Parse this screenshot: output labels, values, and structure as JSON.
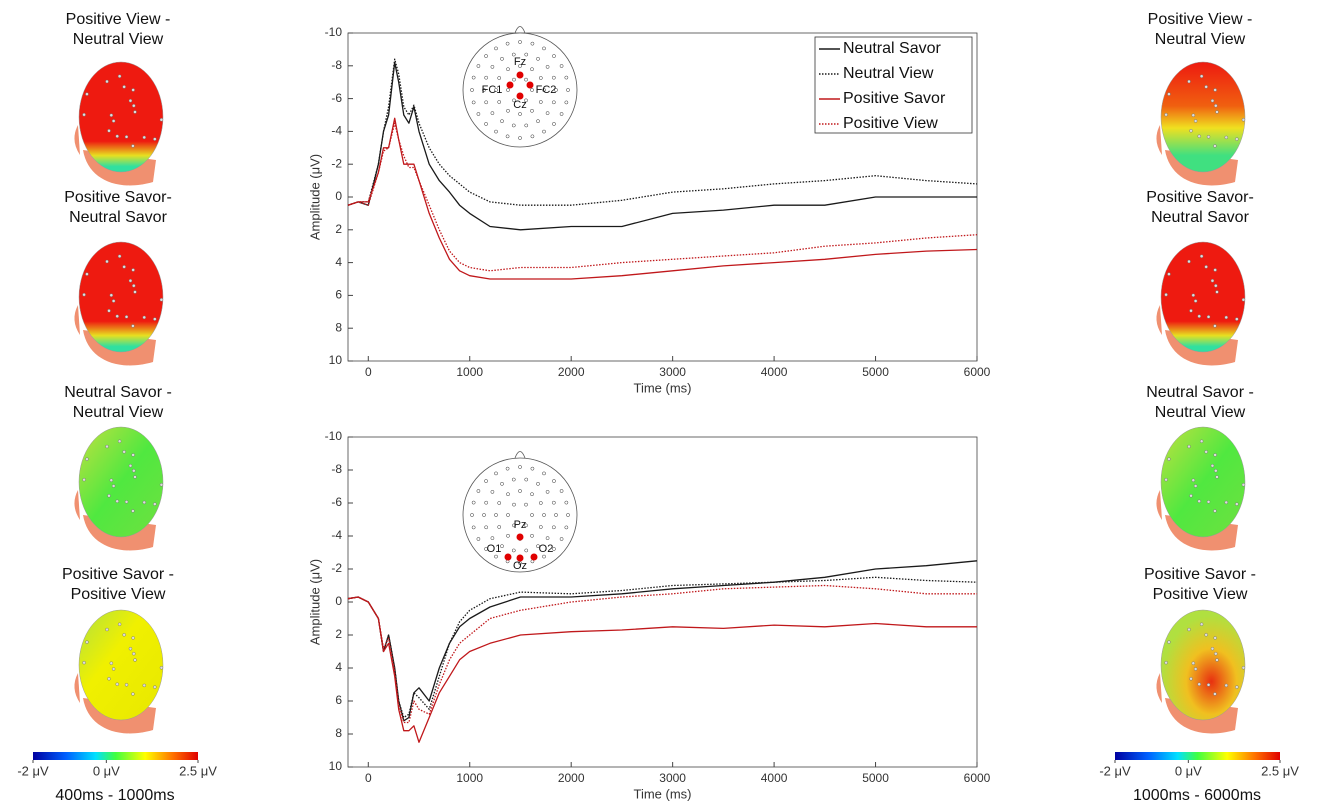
{
  "chart_data": [
    {
      "type": "line",
      "xlabel": "Time (ms)",
      "ylabel": "Amplitude (μV)",
      "xlim": [
        -200,
        6000
      ],
      "xticks": [
        0,
        1000,
        2000,
        3000,
        4000,
        5000,
        6000
      ],
      "ylim": [
        -10,
        10
      ],
      "yticks": [
        -10,
        -8,
        -6,
        -4,
        -2,
        0,
        2,
        4,
        6,
        8,
        10
      ],
      "y_reversed": true,
      "legend": "upper right",
      "electrodes": [
        "Fz",
        "FC1",
        "FC2",
        "Cz"
      ],
      "x": [
        -200,
        -100,
        0,
        100,
        150,
        200,
        260,
        300,
        350,
        400,
        450,
        500,
        600,
        700,
        800,
        900,
        1000,
        1200,
        1500,
        2000,
        2500,
        3000,
        3500,
        4000,
        4500,
        5000,
        5500,
        6000
      ],
      "series": [
        {
          "name": "Neutral Savor",
          "color": "#1a1a1a",
          "style": "solid",
          "values": [
            0.5,
            0.3,
            0.5,
            -2,
            -4,
            -5,
            -8.2,
            -7,
            -5,
            -4.5,
            -5.5,
            -4,
            -2,
            -1,
            -0.3,
            0.5,
            1,
            1.8,
            2,
            1.8,
            1.8,
            1,
            0.8,
            0.5,
            0.5,
            0,
            0,
            0
          ]
        },
        {
          "name": "Neutral View",
          "color": "#1a1a1a",
          "style": "dotted",
          "values": [
            0.5,
            0.3,
            0.3,
            -2,
            -4,
            -5.5,
            -8.4,
            -7.5,
            -5.5,
            -5,
            -5.6,
            -4.5,
            -3,
            -2,
            -1.3,
            -0.8,
            -0.3,
            0.3,
            0.5,
            0.5,
            0.2,
            -0.3,
            -0.5,
            -0.8,
            -1,
            -1.3,
            -1,
            -0.8
          ]
        },
        {
          "name": "Positive Savor",
          "color": "#c0181b",
          "style": "solid",
          "values": [
            0.5,
            0.3,
            0.3,
            -1.5,
            -3,
            -3,
            -4.8,
            -3.5,
            -2,
            -2,
            -2,
            -1,
            1,
            2.5,
            3.8,
            4.5,
            4.8,
            5,
            5,
            5,
            4.8,
            4.5,
            4.2,
            4,
            3.8,
            3.5,
            3.3,
            3.2
          ]
        },
        {
          "name": "Positive View",
          "color": "#c0181b",
          "style": "dotted",
          "values": [
            0.5,
            0.3,
            0.5,
            -1.5,
            -2.8,
            -3,
            -4.5,
            -3.5,
            -2.5,
            -1.8,
            -1.8,
            -1,
            0.5,
            2,
            3.3,
            4,
            4.3,
            4.5,
            4.3,
            4.3,
            4,
            3.8,
            3.6,
            3.4,
            3,
            2.8,
            2.5,
            2.3
          ]
        }
      ]
    },
    {
      "type": "line",
      "xlabel": "Time (ms)",
      "ylabel": "Amplitude (μV)",
      "xlim": [
        -200,
        6000
      ],
      "xticks": [
        0,
        1000,
        2000,
        3000,
        4000,
        5000,
        6000
      ],
      "ylim": [
        -10,
        10
      ],
      "yticks": [
        -10,
        -8,
        -6,
        -4,
        -2,
        0,
        2,
        4,
        6,
        8,
        10
      ],
      "y_reversed": true,
      "electrodes": [
        "Pz",
        "O1",
        "O2",
        "Oz"
      ],
      "x": [
        -200,
        -100,
        0,
        100,
        150,
        200,
        260,
        300,
        350,
        400,
        450,
        500,
        600,
        700,
        800,
        900,
        1000,
        1200,
        1500,
        2000,
        2500,
        3000,
        3500,
        4000,
        4500,
        5000,
        5500,
        6000
      ],
      "series": [
        {
          "color": "#1a1a1a",
          "style": "solid",
          "values": [
            -0.2,
            -0.3,
            0,
            1,
            3,
            2,
            4,
            6,
            7.2,
            7,
            5.5,
            5.2,
            6,
            4,
            2.5,
            1.5,
            1,
            0.3,
            -0.3,
            -0.3,
            -0.5,
            -0.8,
            -1,
            -1.2,
            -1.5,
            -2,
            -2.2,
            -2.5
          ]
        },
        {
          "color": "#1a1a1a",
          "style": "dotted",
          "values": [
            -0.2,
            -0.3,
            0,
            1,
            3,
            2,
            4,
            6,
            7,
            6.8,
            5.5,
            5.8,
            6.5,
            4.5,
            2.5,
            1.2,
            0.5,
            -0.2,
            -0.6,
            -0.5,
            -0.7,
            -1,
            -1.1,
            -1.2,
            -1.3,
            -1.5,
            -1.3,
            -1.2
          ]
        },
        {
          "color": "#c0181b",
          "style": "solid",
          "values": [
            -0.2,
            -0.3,
            0,
            1,
            3,
            2.5,
            4.5,
            6.5,
            7.8,
            7.8,
            7.5,
            8.5,
            7,
            5.5,
            4.5,
            3.5,
            3,
            2.5,
            2,
            1.8,
            1.7,
            1.5,
            1.6,
            1.4,
            1.5,
            1.3,
            1.5,
            1.5
          ]
        },
        {
          "color": "#c0181b",
          "style": "dotted",
          "values": [
            -0.2,
            -0.3,
            0,
            1,
            2.8,
            2.2,
            4.2,
            6.2,
            7.3,
            7.3,
            6,
            6.5,
            6.8,
            5,
            3.5,
            2.5,
            2,
            1,
            0.5,
            0,
            -0.3,
            -0.5,
            -0.8,
            -0.9,
            -1,
            -0.8,
            -0.5,
            -0.5
          ]
        }
      ]
    }
  ],
  "topomaps": {
    "left": {
      "caption": "400ms - 1000ms",
      "colorbar": {
        "lim": [
          -2,
          2.5
        ],
        "ticks": [
          {
            "value": -2,
            "label": "-2 μV"
          },
          {
            "value": 0,
            "label": "0 μV"
          },
          {
            "value": 2.5,
            "label": "2.5 μV"
          }
        ]
      },
      "maps": [
        {
          "title": [
            "Positive View -",
            "Neutral View"
          ]
        },
        {
          "title": [
            "Positive Savor-",
            "Neutral Savor"
          ]
        },
        {
          "title": [
            "Neutral Savor -",
            "Neutral View"
          ]
        },
        {
          "title": [
            "Positive Savor -",
            "Positive View"
          ]
        }
      ]
    },
    "right": {
      "caption": "1000ms - 6000ms",
      "colorbar": {
        "lim": [
          -2,
          2.5
        ],
        "ticks": [
          {
            "value": -2,
            "label": "-2 μV"
          },
          {
            "value": 0,
            "label": "0 μV"
          },
          {
            "value": 2.5,
            "label": "2.5 μV"
          }
        ]
      },
      "maps": [
        {
          "title": [
            "Positive View -",
            "Neutral View"
          ]
        },
        {
          "title": [
            "Positive Savor-",
            "Neutral Savor"
          ]
        },
        {
          "title": [
            "Neutral Savor -",
            "Neutral View"
          ]
        },
        {
          "title": [
            "Positive Savor -",
            "Positive View"
          ]
        }
      ]
    }
  }
}
